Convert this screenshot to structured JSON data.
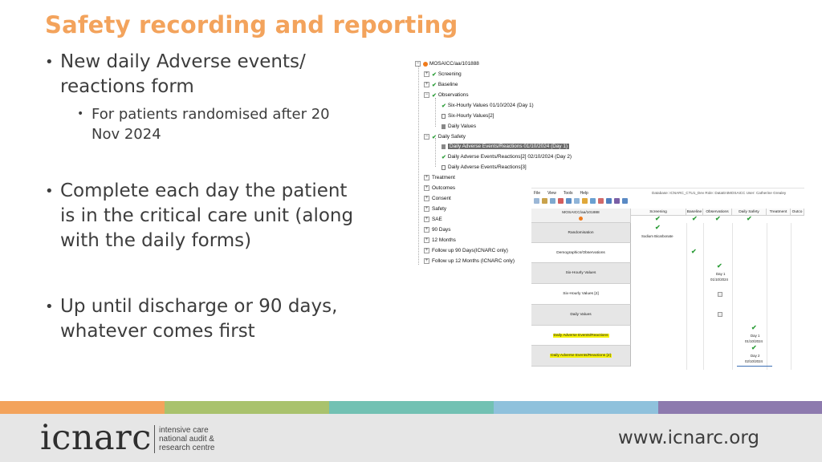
{
  "slide": {
    "title": "Safety recording and reporting",
    "bullets": [
      {
        "line1": "New daily Adverse events/",
        "line2": "reactions form"
      },
      {
        "line1": "Complete each day the patient",
        "line2": "is in the critical care unit (along",
        "line3": "with the daily forms)"
      },
      {
        "line1": "Up until discharge or 90 days,",
        "line2": "whatever comes first"
      }
    ],
    "sub_bullet": {
      "line1": "For patients randomised after 20",
      "line2": "Nov 2024"
    }
  },
  "tree": {
    "root": "MOSAICC/aa/101888",
    "items": {
      "screening": "Screening",
      "baseline": "Baseline",
      "observations": "Observations",
      "six_hourly_1": "Six-Hourly Values 01/10/2024 (Day 1)",
      "six_hourly_2": "Six-Hourly Values[2]",
      "daily_values": "Daily Values",
      "daily_safety": "Daily Safety",
      "ae_1": "Daily Adverse Events/Reactions 01/10/2024 (Day 1)",
      "ae_2": "Daily Adverse Events/Reactions[2] 02/10/2024 (Day 2)",
      "ae_3": "Daily Adverse Events/Reactions[3]",
      "treatment": "Treatment",
      "outcomes": "Outcomes",
      "consent": "Consent",
      "safety": "Safety",
      "sae": "SAE",
      "days90": "90 Days",
      "months12": "12 Months",
      "fu90": "Follow up 90 Days(ICNARC only)",
      "fu12": "Follow up 12 Months (ICNARC only)"
    }
  },
  "grid": {
    "menu": [
      "File",
      "View",
      "Tools",
      "Help"
    ],
    "info": "Database: ICNARC_CTU1_Dev  Role: DataEntMOSAICC  User: Catherine Grealey",
    "patient": "MOSAICC/aa/101888",
    "columns": [
      "Screening",
      "Baseline",
      "Observations",
      "Daily Safety",
      "Treatment",
      "Outco"
    ],
    "rows": [
      "Randomisation",
      "Demographics/Observations",
      "Six-Hourly Values",
      "Six-Hourly Values [2]",
      "Daily Values",
      "Daily Adverse Events/Reactions",
      "Daily Adverse Events/Reactions [2]"
    ],
    "randomisation_value": "Sodium Bicarbonate",
    "six_hourly_day": "Day 1",
    "six_hourly_date": "01/10/2024",
    "ae1_day": "Day 1",
    "ae1_date": "01/10/2024",
    "ae2_day": "Day 2",
    "ae2_date": "02/10/2024"
  },
  "footer": {
    "logo": "icnarc",
    "tagline": [
      "intensive care",
      "national audit &",
      "research centre"
    ],
    "url": "www.icnarc.org",
    "stripe_colors": [
      "#f3a35c",
      "#a9c26d",
      "#72c1b3",
      "#8fc1dc",
      "#8d7aae"
    ]
  }
}
